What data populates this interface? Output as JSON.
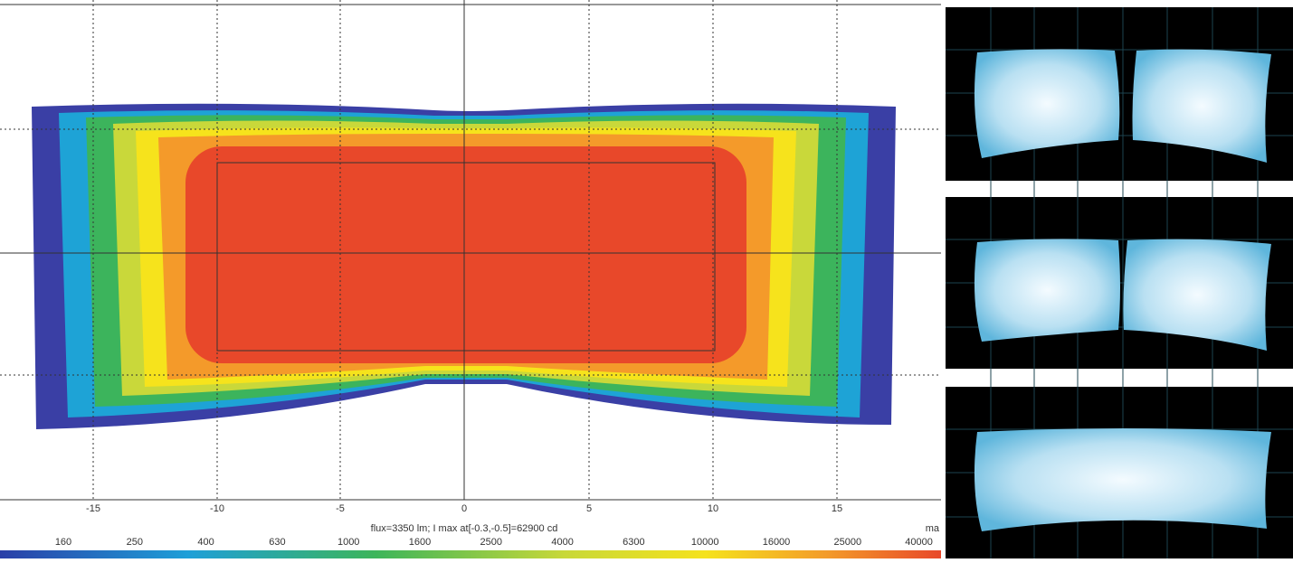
{
  "plot": {
    "x_ticks": [
      "-15",
      "-10",
      "-5",
      "0",
      "5",
      "10",
      "15"
    ],
    "caption": "flux=3350 lm; I max at[-0.3,-0.5]=62900 cd",
    "unit": "ma",
    "colorbar_labels": [
      "160",
      "250",
      "400",
      "630",
      "1000",
      "1600",
      "2500",
      "4000",
      "6300",
      "10000",
      "16000",
      "25000",
      "40000"
    ]
  }
}
